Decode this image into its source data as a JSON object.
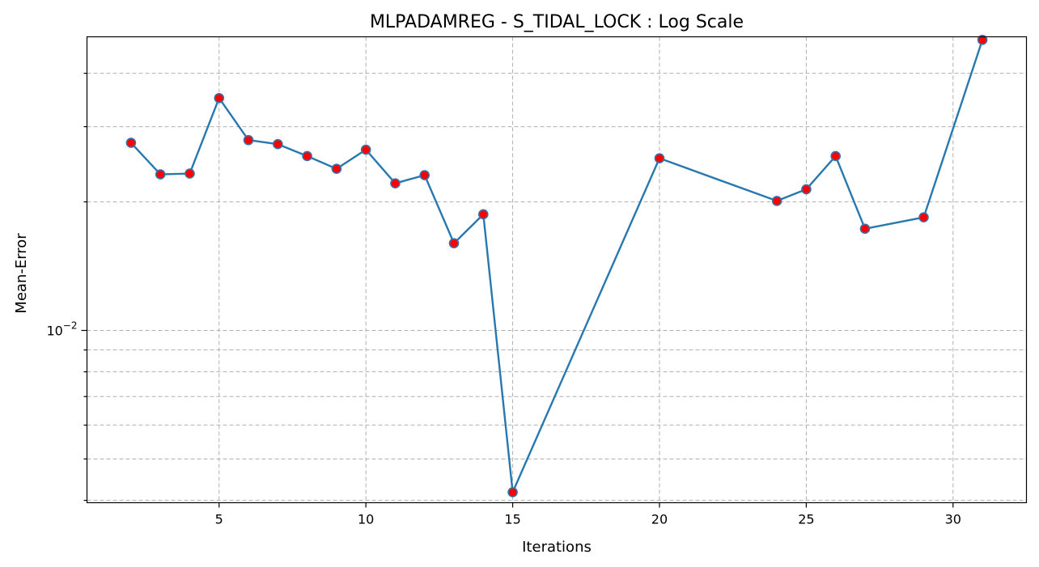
{
  "chart_data": {
    "type": "line",
    "title": "MLPADAMREG - S_TIDAL_LOCK : Log Scale",
    "xlabel": "Iterations",
    "ylabel": "Mean-Error",
    "yscale": "log",
    "grid": true,
    "xlim": [
      0.5,
      32.5
    ],
    "ylim": [
      0.00395,
      0.0487
    ],
    "x_ticks": [
      5,
      10,
      15,
      20,
      25,
      30
    ],
    "y_major_ticks": [
      {
        "value": 0.01,
        "base": "10",
        "exp": "−2"
      }
    ],
    "y_minor_ticks": [
      0.004,
      0.005,
      0.006,
      0.007,
      0.008,
      0.009,
      0.02,
      0.03,
      0.04
    ],
    "colors": {
      "line": "#2878b0",
      "marker_face": "#ff0000",
      "marker_edge": "#3a72a8"
    },
    "series": [
      {
        "x": [
          2,
          3,
          4,
          5,
          6,
          7,
          8,
          9,
          10,
          11,
          12,
          13,
          14,
          15,
          20,
          24,
          25,
          26,
          27,
          29,
          31
        ],
        "values": [
          0.0275,
          0.0232,
          0.0233,
          0.035,
          0.0279,
          0.0273,
          0.0256,
          0.0239,
          0.0265,
          0.0221,
          0.0231,
          0.016,
          0.0187,
          0.00418,
          0.0253,
          0.0201,
          0.0214,
          0.0256,
          0.0173,
          0.0184,
          0.0479
        ]
      }
    ]
  }
}
